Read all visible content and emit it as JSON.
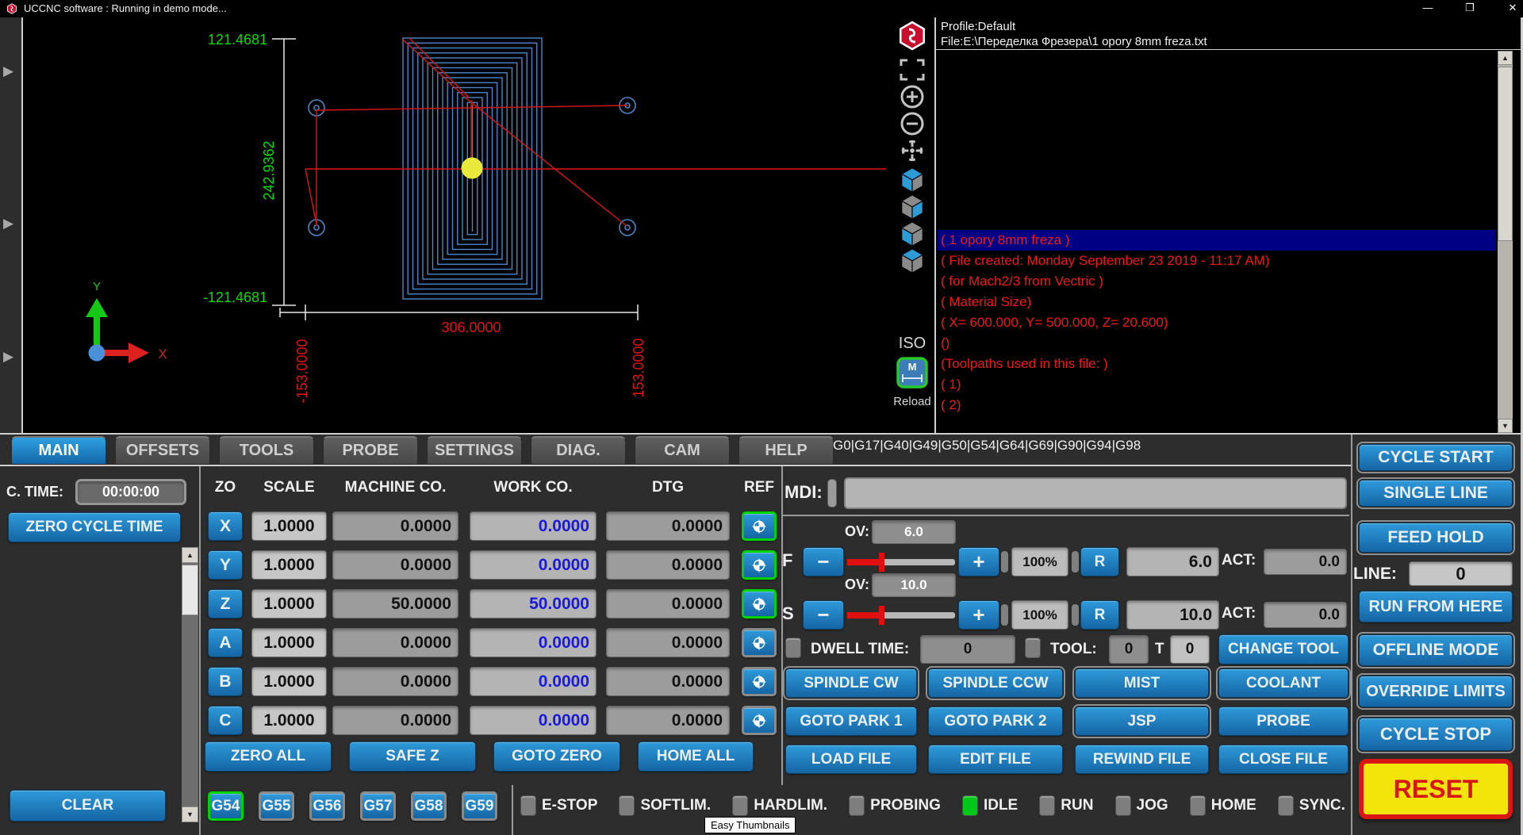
{
  "window": {
    "title": "UCCNC software : Running in demo mode...",
    "minimize": "—",
    "restore": "❐",
    "close": "✕"
  },
  "left_strip": {
    "arrow": "▶"
  },
  "toolpath": {
    "dim_top": "121.4681",
    "dim_height": "242.9362",
    "dim_bottom": "-121.4681",
    "dim_width": "306.0000",
    "dim_left": "-153.0000",
    "dim_right": "153.0000",
    "axis_x": "X",
    "axis_y": "Y"
  },
  "view_toolbar": {
    "iso_label": "ISO",
    "m_label": "M",
    "reload_label": "Reload"
  },
  "gcode": {
    "profile": "Profile:Default",
    "file": "File:E:\\Переделка Фрезера\\1 opory 8mm freza.txt",
    "highlighted_index": 0,
    "lines": [
      "( 1 opory 8mm freza )",
      "( File created: Monday September 23 2019 - 11:17 AM)",
      "( for Mach2/3 from Vectric )",
      "( Material Size)",
      "( X= 600.000, Y= 500.000, Z= 20.600)",
      "()",
      "(Toolpaths used in this file: )",
      "( 1)",
      "( 2)"
    ],
    "scroll_up": "▲",
    "scroll_down": "▼"
  },
  "tabs": [
    {
      "label": "MAIN",
      "active": true
    },
    {
      "label": "OFFSETS",
      "active": false
    },
    {
      "label": "TOOLS",
      "active": false
    },
    {
      "label": "PROBE",
      "active": false
    },
    {
      "label": "SETTINGS",
      "active": false
    },
    {
      "label": "DIAG.",
      "active": false
    },
    {
      "label": "CAM",
      "active": false
    },
    {
      "label": "HELP",
      "active": false
    }
  ],
  "modal_gcodes": "G0|G17|G40|G49|G50|G54|G64|G69|G90|G94|G98",
  "left_panel": {
    "cycle_time_label": "C. TIME:",
    "cycle_time": "00:00:00",
    "zero_cycle_time": "ZERO CYCLE TIME",
    "clear": "CLEAR",
    "scroll_up": "▲",
    "scroll_down": "▼"
  },
  "dro": {
    "headers": [
      "ZO",
      "SCALE",
      "MACHINE CO.",
      "WORK CO.",
      "DTG",
      "REF"
    ],
    "axes": [
      {
        "name": "X",
        "scale": "1.0000",
        "machine": "0.0000",
        "work": "0.0000",
        "dtg": "0.0000",
        "ref_green": true
      },
      {
        "name": "Y",
        "scale": "1.0000",
        "machine": "0.0000",
        "work": "0.0000",
        "dtg": "0.0000",
        "ref_green": true
      },
      {
        "name": "Z",
        "scale": "1.0000",
        "machine": "50.0000",
        "work": "50.0000",
        "dtg": "0.0000",
        "ref_green": true
      },
      {
        "name": "A",
        "scale": "1.0000",
        "machine": "0.0000",
        "work": "0.0000",
        "dtg": "0.0000",
        "ref_green": false
      },
      {
        "name": "B",
        "scale": "1.0000",
        "machine": "0.0000",
        "work": "0.0000",
        "dtg": "0.0000",
        "ref_green": false
      },
      {
        "name": "C",
        "scale": "1.0000",
        "machine": "0.0000",
        "work": "0.0000",
        "dtg": "0.0000",
        "ref_green": false
      }
    ],
    "buttons": [
      "ZERO ALL",
      "SAFE Z",
      "GOTO ZERO",
      "HOME ALL"
    ],
    "wcs": [
      {
        "label": "G54",
        "active": true
      },
      {
        "label": "G55",
        "active": false
      },
      {
        "label": "G56",
        "active": false
      },
      {
        "label": "G57",
        "active": false
      },
      {
        "label": "G58",
        "active": false
      },
      {
        "label": "G59",
        "active": false
      }
    ]
  },
  "mdi": {
    "label": "MDI:",
    "value": "",
    "placeholder": ""
  },
  "feed": {
    "letter": "F",
    "ov_label": "OV:",
    "ov": "6.0",
    "minus": "−",
    "plus": "+",
    "percent": "100%",
    "reset": "R",
    "value": "6.0",
    "act_label": "ACT:",
    "act": "0.0"
  },
  "spindle": {
    "letter": "S",
    "ov_label": "OV:",
    "ov": "10.0",
    "minus": "−",
    "plus": "+",
    "percent": "100%",
    "reset": "R",
    "value": "10.0",
    "act_label": "ACT:",
    "act": "0.0"
  },
  "tool_row": {
    "dwell_label": "DWELL TIME:",
    "dwell_value": "0",
    "tool_label": "TOOL:",
    "tool_value": "0",
    "t_label": "T",
    "t_value": "0",
    "change_tool": "CHANGE TOOL"
  },
  "actions": [
    {
      "label": "SPINDLE CW",
      "framed": true
    },
    {
      "label": "SPINDLE CCW",
      "framed": true
    },
    {
      "label": "MIST",
      "framed": true
    },
    {
      "label": "COOLANT",
      "framed": true
    },
    {
      "label": "GOTO PARK 1",
      "framed": false
    },
    {
      "label": "GOTO PARK 2",
      "framed": false
    },
    {
      "label": "JSP",
      "framed": true
    },
    {
      "label": "PROBE",
      "framed": false
    },
    {
      "label": "LOAD FILE",
      "framed": false
    },
    {
      "label": "EDIT FILE",
      "framed": false
    },
    {
      "label": "REWIND FILE",
      "framed": false
    },
    {
      "label": "CLOSE FILE",
      "framed": false
    }
  ],
  "status": [
    {
      "label": "E-STOP",
      "on": false
    },
    {
      "label": "SOFTLIM.",
      "on": false
    },
    {
      "label": "HARDLIM.",
      "on": false
    },
    {
      "label": "PROBING",
      "on": false
    },
    {
      "label": "IDLE",
      "on": true
    },
    {
      "label": "RUN",
      "on": false
    },
    {
      "label": "JOG",
      "on": false
    },
    {
      "label": "HOME",
      "on": false
    },
    {
      "label": "SYNC.",
      "on": false
    }
  ],
  "right_panel": {
    "cycle_start": "CYCLE START",
    "single_line": "SINGLE LINE",
    "feed_hold": "FEED HOLD",
    "line_label": "LINE:",
    "line_value": "0",
    "run_from_here": "RUN FROM HERE",
    "offline_mode": "OFFLINE MODE",
    "override_limits": "OVERRIDE LIMITS",
    "cycle_stop": "CYCLE STOP",
    "reset": "RESET"
  },
  "tooltip": "Easy Thumbnails",
  "colors": {
    "accent_blue": "#1e7fc0",
    "active_green": "#00d400",
    "led_green": "#00c818",
    "dim_green": "#00dd00",
    "path_red": "#dd1515",
    "path_blue": "#4a86c8",
    "highlight_navy": "#000085",
    "reset_yellow": "#f3e50a",
    "reset_red": "#d81616"
  }
}
